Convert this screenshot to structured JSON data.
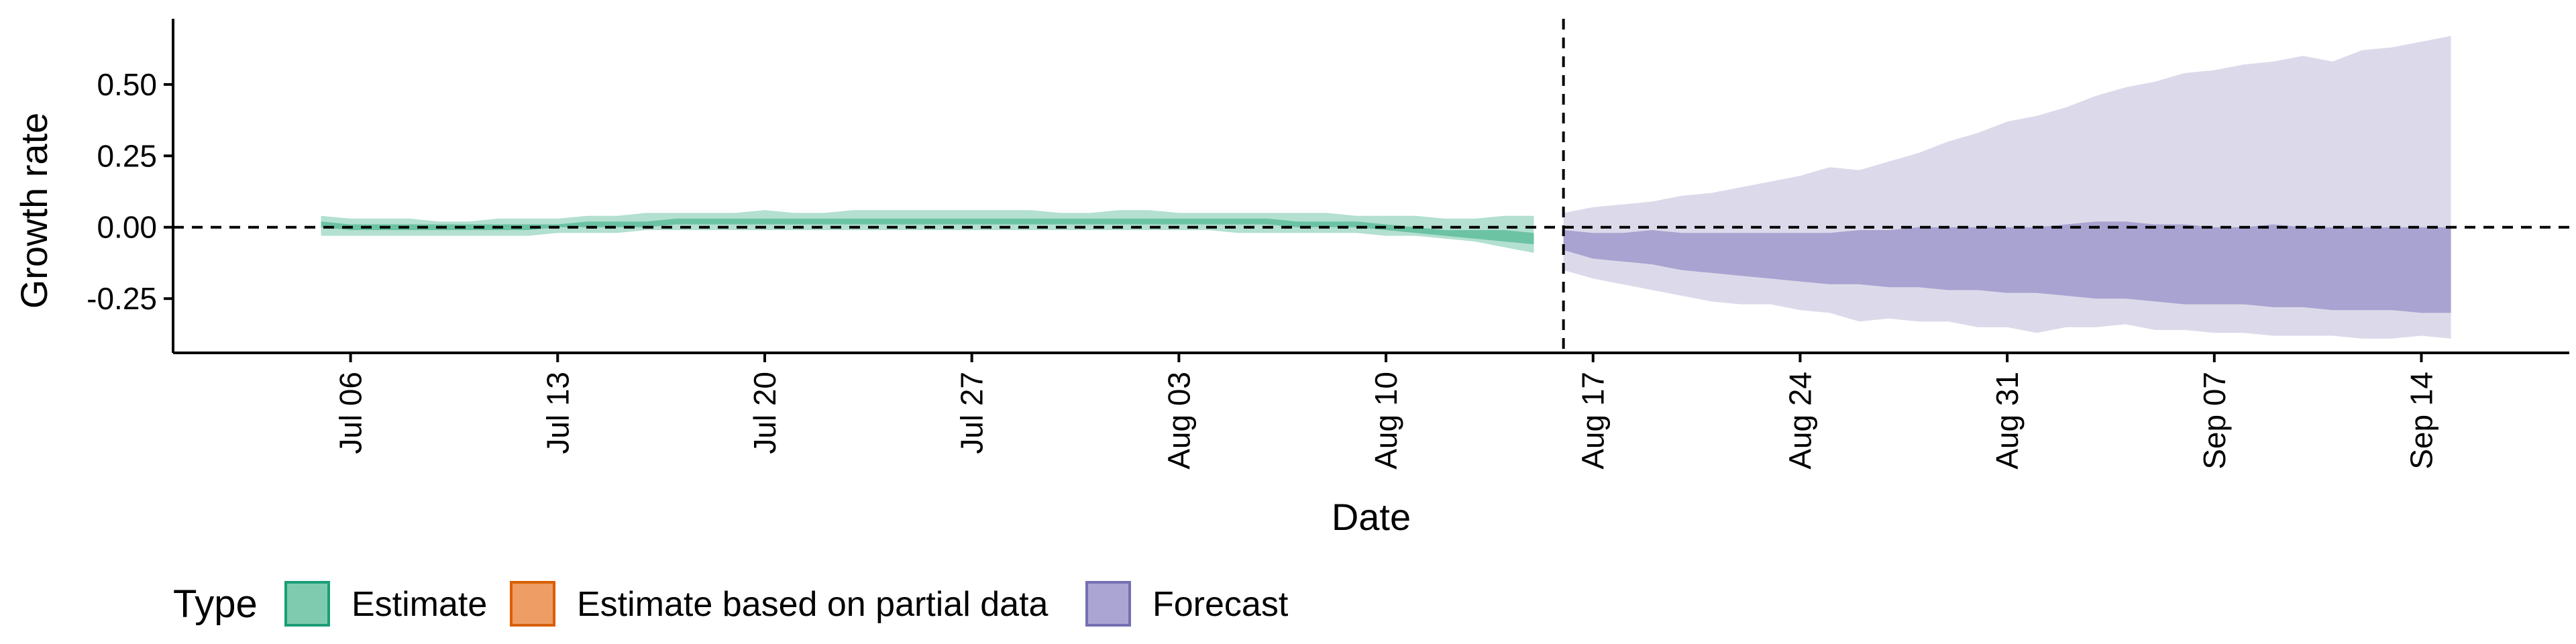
{
  "chart_data": {
    "type": "area",
    "xlabel": "Date",
    "ylabel": "Growth rate",
    "x_ticks": [
      "2020-07-06",
      "2020-07-13",
      "2020-07-20",
      "2020-07-27",
      "2020-08-03",
      "2020-08-10",
      "2020-08-17",
      "2020-08-24",
      "2020-08-31",
      "2020-09-07",
      "2020-09-14"
    ],
    "x_tick_labels": [
      "Jul 06",
      "Jul 13",
      "Jul 20",
      "Jul 27",
      "Aug 03",
      "Aug 10",
      "Aug 17",
      "Aug 24",
      "Aug 31",
      "Sep 07",
      "Sep 14"
    ],
    "y_ticks": [
      -0.25,
      0.0,
      0.25,
      0.5
    ],
    "y_tick_labels": [
      "-0.25",
      "0.00",
      "0.25",
      "0.50"
    ],
    "xlim": [
      "2020-06-30",
      "2020-09-19"
    ],
    "ylim": [
      -0.44,
      0.73
    ],
    "reference_hline": 0,
    "reference_vline": "2020-08-16",
    "grid": false,
    "legend": {
      "position": "bottom-left",
      "title": "Type",
      "entries": [
        {
          "label": "Estimate",
          "fill": "#7fcbb0",
          "border": "#1b9e77"
        },
        {
          "label": "Estimate based on partial data",
          "fill": "#ee9d64",
          "border": "#d95f02"
        },
        {
          "label": "Forecast",
          "fill": "#aaa5d2",
          "border": "#7570b3"
        }
      ]
    },
    "series": [
      {
        "type": "Estimate",
        "outer_color": "#b3e0d0",
        "inner_color": "#6cc3a4",
        "x": [
          "2020-07-05",
          "2020-07-06",
          "2020-07-07",
          "2020-07-08",
          "2020-07-09",
          "2020-07-10",
          "2020-07-11",
          "2020-07-12",
          "2020-07-13",
          "2020-07-14",
          "2020-07-15",
          "2020-07-16",
          "2020-07-17",
          "2020-07-18",
          "2020-07-19",
          "2020-07-20",
          "2020-07-21",
          "2020-07-22",
          "2020-07-23",
          "2020-07-24",
          "2020-07-25",
          "2020-07-26",
          "2020-07-27",
          "2020-07-28",
          "2020-07-29",
          "2020-07-30",
          "2020-07-31",
          "2020-08-01",
          "2020-08-02",
          "2020-08-03",
          "2020-08-04",
          "2020-08-05",
          "2020-08-06",
          "2020-08-07",
          "2020-08-08",
          "2020-08-09",
          "2020-08-10",
          "2020-08-11",
          "2020-08-12",
          "2020-08-13",
          "2020-08-14",
          "2020-08-15"
        ],
        "upper_90": [
          0.04,
          0.03,
          0.03,
          0.03,
          0.02,
          0.02,
          0.03,
          0.03,
          0.03,
          0.04,
          0.04,
          0.05,
          0.05,
          0.05,
          0.05,
          0.06,
          0.05,
          0.05,
          0.06,
          0.06,
          0.06,
          0.06,
          0.06,
          0.06,
          0.06,
          0.05,
          0.05,
          0.06,
          0.06,
          0.05,
          0.05,
          0.05,
          0.05,
          0.05,
          0.05,
          0.04,
          0.04,
          0.04,
          0.03,
          0.03,
          0.04,
          0.04
        ],
        "lower_90": [
          -0.03,
          -0.03,
          -0.03,
          -0.03,
          -0.03,
          -0.03,
          -0.03,
          -0.03,
          -0.02,
          -0.02,
          -0.02,
          -0.01,
          -0.01,
          -0.01,
          -0.01,
          -0.01,
          -0.01,
          -0.01,
          -0.01,
          -0.01,
          -0.01,
          -0.01,
          -0.01,
          -0.01,
          -0.01,
          -0.01,
          -0.01,
          -0.01,
          -0.01,
          -0.01,
          -0.01,
          -0.02,
          -0.02,
          -0.02,
          -0.02,
          -0.02,
          -0.03,
          -0.03,
          -0.04,
          -0.05,
          -0.07,
          -0.09
        ],
        "upper_50": [
          0.02,
          0.01,
          0.01,
          0.01,
          0.01,
          0.01,
          0.01,
          0.01,
          0.01,
          0.02,
          0.02,
          0.02,
          0.03,
          0.03,
          0.03,
          0.03,
          0.03,
          0.03,
          0.03,
          0.03,
          0.03,
          0.03,
          0.03,
          0.03,
          0.03,
          0.03,
          0.03,
          0.03,
          0.03,
          0.03,
          0.03,
          0.03,
          0.03,
          0.02,
          0.02,
          0.02,
          0.01,
          0.0,
          -0.01,
          -0.01,
          -0.01,
          -0.02
        ],
        "lower_50": [
          0.0,
          -0.01,
          -0.01,
          -0.01,
          -0.01,
          -0.01,
          -0.01,
          -0.01,
          0.0,
          0.0,
          0.0,
          0.0,
          0.01,
          0.01,
          0.01,
          0.01,
          0.01,
          0.01,
          0.01,
          0.01,
          0.01,
          0.01,
          0.01,
          0.01,
          0.01,
          0.01,
          0.01,
          0.01,
          0.01,
          0.01,
          0.01,
          0.01,
          0.01,
          0.0,
          0.0,
          0.0,
          -0.01,
          -0.02,
          -0.03,
          -0.04,
          -0.05,
          -0.06
        ]
      },
      {
        "type": "Forecast",
        "outer_color": "#dcdaea",
        "inner_color": "#a8a3d0",
        "x": [
          "2020-08-16",
          "2020-08-17",
          "2020-08-18",
          "2020-08-19",
          "2020-08-20",
          "2020-08-21",
          "2020-08-22",
          "2020-08-23",
          "2020-08-24",
          "2020-08-25",
          "2020-08-26",
          "2020-08-27",
          "2020-08-28",
          "2020-08-29",
          "2020-08-30",
          "2020-08-31",
          "2020-09-01",
          "2020-09-02",
          "2020-09-03",
          "2020-09-04",
          "2020-09-05",
          "2020-09-06",
          "2020-09-07",
          "2020-09-08",
          "2020-09-09",
          "2020-09-10",
          "2020-09-11",
          "2020-09-12",
          "2020-09-13",
          "2020-09-14",
          "2020-09-15"
        ],
        "upper_90": [
          0.05,
          0.07,
          0.08,
          0.09,
          0.11,
          0.12,
          0.14,
          0.16,
          0.18,
          0.21,
          0.2,
          0.23,
          0.26,
          0.3,
          0.33,
          0.37,
          0.39,
          0.42,
          0.46,
          0.49,
          0.51,
          0.54,
          0.55,
          0.57,
          0.58,
          0.6,
          0.58,
          0.62,
          0.63,
          0.65,
          0.67
        ],
        "lower_90": [
          -0.15,
          -0.18,
          -0.2,
          -0.22,
          -0.24,
          -0.26,
          -0.27,
          -0.27,
          -0.29,
          -0.3,
          -0.33,
          -0.32,
          -0.33,
          -0.33,
          -0.35,
          -0.35,
          -0.37,
          -0.35,
          -0.35,
          -0.34,
          -0.36,
          -0.36,
          -0.37,
          -0.37,
          -0.38,
          -0.38,
          -0.38,
          -0.39,
          -0.39,
          -0.38,
          -0.39
        ],
        "upper_50": [
          -0.01,
          -0.02,
          -0.02,
          -0.01,
          -0.02,
          -0.02,
          -0.02,
          -0.02,
          -0.02,
          -0.02,
          -0.01,
          -0.01,
          0.0,
          0.0,
          0.0,
          0.0,
          0.0,
          0.01,
          0.02,
          0.02,
          0.01,
          0.01,
          0.0,
          0.0,
          0.01,
          0.0,
          0.0,
          0.0,
          0.0,
          0.0,
          0.0
        ],
        "lower_50": [
          -0.08,
          -0.11,
          -0.12,
          -0.13,
          -0.15,
          -0.16,
          -0.17,
          -0.18,
          -0.19,
          -0.2,
          -0.2,
          -0.21,
          -0.21,
          -0.22,
          -0.22,
          -0.23,
          -0.23,
          -0.24,
          -0.25,
          -0.25,
          -0.26,
          -0.27,
          -0.27,
          -0.27,
          -0.28,
          -0.28,
          -0.29,
          -0.29,
          -0.29,
          -0.3,
          -0.3
        ]
      }
    ]
  }
}
